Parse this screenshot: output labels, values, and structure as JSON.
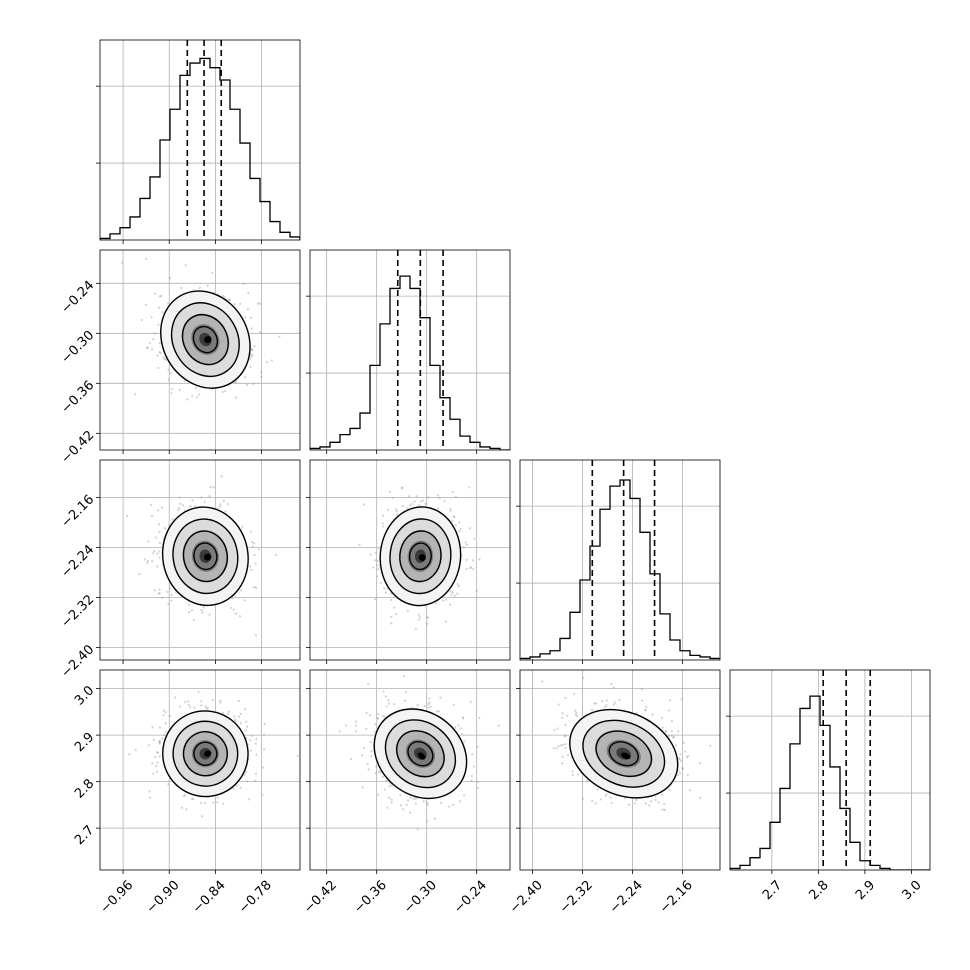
{
  "chart_data": {
    "type": "corner",
    "grid": true,
    "parameters": [
      {
        "range": [
          -0.99,
          -0.73
        ],
        "ticks": [
          "−0.96",
          "−0.90",
          "−0.84",
          "−0.78"
        ],
        "tick_values": [
          -0.96,
          -0.9,
          -0.84,
          -0.78
        ]
      },
      {
        "range": [
          -0.44,
          -0.2
        ],
        "ticks": [
          "−0.42",
          "−0.36",
          "−0.30",
          "−0.24"
        ],
        "tick_values": [
          -0.42,
          -0.36,
          -0.3,
          -0.24
        ]
      },
      {
        "range": [
          -2.42,
          -2.1
        ],
        "ticks": [
          "−2.40",
          "−2.32",
          "−2.24",
          "−2.16"
        ],
        "tick_values": [
          -2.4,
          -2.32,
          -2.24,
          -2.16
        ]
      },
      {
        "range": [
          2.61,
          3.04
        ],
        "ticks": [
          "2.7",
          "2.8",
          "2.9",
          "3.0"
        ],
        "tick_values": [
          2.7,
          2.8,
          2.9,
          3.0
        ]
      }
    ],
    "hist_ylim": [
      0,
      1.3
    ],
    "histograms": [
      {
        "bin_start": -0.99,
        "bin_width": 0.013,
        "values": [
          0.01,
          0.04,
          0.08,
          0.15,
          0.27,
          0.41,
          0.65,
          0.85,
          1.07,
          1.15,
          1.18,
          1.12,
          1.04,
          0.85,
          0.63,
          0.4,
          0.25,
          0.12,
          0.05,
          0.02
        ],
        "quantiles": [
          -0.8765,
          -0.8547,
          -0.8324
        ]
      },
      {
        "bin_start": -0.44,
        "bin_width": 0.012,
        "values": [
          0.01,
          0.02,
          0.05,
          0.1,
          0.14,
          0.24,
          0.55,
          0.82,
          1.05,
          1.13,
          1.05,
          0.86,
          0.55,
          0.34,
          0.2,
          0.09,
          0.05,
          0.02,
          0.01,
          0.0
        ],
        "quantiles": [
          -0.3347,
          -0.3076,
          -0.2803
        ]
      },
      {
        "bin_start": -2.42,
        "bin_width": 0.016,
        "values": [
          0.01,
          0.02,
          0.04,
          0.06,
          0.14,
          0.31,
          0.52,
          0.74,
          0.98,
          1.13,
          1.17,
          1.05,
          0.83,
          0.56,
          0.3,
          0.13,
          0.06,
          0.03,
          0.02,
          0.01
        ],
        "quantiles": [
          -2.3043,
          -2.2542,
          -2.2047
        ]
      },
      {
        "bin_start": 2.61,
        "bin_width": 0.0215,
        "values": [
          0.01,
          0.03,
          0.08,
          0.14,
          0.31,
          0.53,
          0.82,
          1.05,
          1.13,
          0.94,
          0.67,
          0.4,
          0.18,
          0.06,
          0.03,
          0.01,
          0.0,
          0.0,
          0.0,
          0.0
        ],
        "quantiles": [
          2.8104,
          2.8597,
          2.9115
        ]
      }
    ],
    "scatter_2d": [
      {
        "x": 0,
        "y": 1,
        "center": [
          -0.853,
          -0.3075
        ],
        "sd": [
          0.027,
          0.0295
        ],
        "angle_deg": -30
      },
      {
        "x": 0,
        "y": 2,
        "center": [
          -0.853,
          -2.254
        ],
        "sd": [
          0.027,
          0.0385
        ],
        "angle_deg": -10
      },
      {
        "x": 1,
        "y": 2,
        "center": [
          -0.3075,
          -2.254
        ],
        "sd": [
          0.0235,
          0.0385
        ],
        "angle_deg": 5
      },
      {
        "x": 0,
        "y": 3,
        "center": [
          -0.853,
          2.86
        ],
        "sd": [
          0.027,
          0.045
        ],
        "angle_deg": -30
      },
      {
        "x": 1,
        "y": 3,
        "center": [
          -0.3075,
          2.86
        ],
        "sd": [
          0.029,
          0.043
        ],
        "angle_deg": 40
      },
      {
        "x": 2,
        "y": 3,
        "center": [
          -2.254,
          2.86
        ],
        "sd": [
          0.044,
          0.043
        ],
        "angle_deg": 25
      }
    ],
    "contour_levels_sigma": [
      0.5,
      1.0,
      1.5,
      2.0
    ]
  }
}
